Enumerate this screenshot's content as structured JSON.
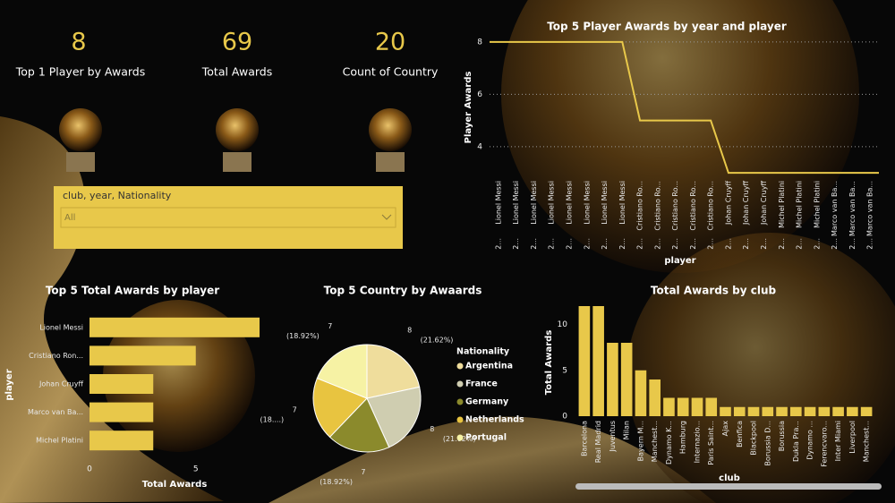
{
  "kpis": [
    {
      "value": 8,
      "label": "Top 1 Player by Awards"
    },
    {
      "value": 69,
      "label": "Total Awards"
    },
    {
      "value": 20,
      "label": "Count of Country"
    }
  ],
  "slicer": {
    "title": "club, year, Nationality",
    "value": "All"
  },
  "chart_data": [
    {
      "type": "line",
      "title": "Top 5 Player Awards by year and player",
      "x_label": "player",
      "y_label": "Player Awards",
      "categories": [
        "Lionel Messi",
        "Lionel Messi",
        "Lionel Messi",
        "Lionel Messi",
        "Lionel Messi",
        "Lionel Messi",
        "Lionel Messi",
        "Lionel Messi",
        "Cristiano Ro...",
        "Cristiano Ro...",
        "Cristiano Ro...",
        "Cristiano Ro...",
        "Cristiano Ro...",
        "Johan Cruyff",
        "Johan Cruyff",
        "Johan Cruyff",
        "Michel Platini",
        "Michel Platini",
        "Michel Platini",
        "Marco van Ba...",
        "Marco van Ba...",
        "Marco van Ba..."
      ],
      "year_labels": [
        "2...",
        "2...",
        "2...",
        "2...",
        "2...",
        "2...",
        "2...",
        "2...",
        "2...",
        "2...",
        "2...",
        "2...",
        "2...",
        "2...",
        "2...",
        "2...",
        "2...",
        "2...",
        "2...",
        "2...",
        "2...",
        "2..."
      ],
      "values": [
        8,
        8,
        8,
        8,
        8,
        8,
        8,
        8,
        5,
        5,
        5,
        5,
        5,
        3,
        3,
        3,
        3,
        3,
        3,
        3,
        3,
        3
      ],
      "color": "#e8c84a",
      "ylim": [
        2.8,
        8.2
      ],
      "yticks": [
        4,
        6,
        8
      ],
      "grid": true
    },
    {
      "type": "hbar",
      "title": "Top 5 Total Awards by player",
      "x_label": "Total Awards",
      "y_label": "player",
      "categories": [
        "Lionel Messi",
        "Cristiano Ron...",
        "Johan Cruyff",
        "Marco van Ba...",
        "Michel Platini"
      ],
      "values": [
        8,
        5,
        3,
        3,
        3
      ],
      "color": "#e8c84a",
      "xlim": [
        0,
        8
      ],
      "xticks": [
        0,
        5
      ]
    },
    {
      "type": "pie",
      "title": "Top 5 Country by Awaards",
      "legend_title": "Nationality",
      "categories": [
        "Argentina",
        "France",
        "Germany",
        "Netherlands",
        "Portugal"
      ],
      "values": [
        8,
        8,
        7,
        7,
        7
      ],
      "percent_labels": [
        "(21.62%)",
        "(21.62%)",
        "(18.92%)",
        "(18....)",
        "(18.92%)"
      ],
      "colors": [
        "#efdd9c",
        "#cfcdb0",
        "#8b8a2c",
        "#e8c440",
        "#f6f2a4"
      ]
    },
    {
      "type": "bar",
      "title": "Total Awards by club",
      "x_label": "club",
      "y_label": "Total Awards",
      "categories": [
        "Barcelona",
        "Real Madrid",
        "Juventus",
        "Milan",
        "Bayern M...",
        "Manchest...",
        "Dynamo K...",
        "Hamburg",
        "Internazio...",
        "Paris Saint...",
        "Ajax",
        "Benfica",
        "Blackpool",
        "Borussia D...",
        "Borussia",
        "Dukla Pra...",
        "Dynamo ...",
        "Ferencvaro...",
        "Inter Miami",
        "Liverpool",
        "Manchest..."
      ],
      "values": [
        12,
        12,
        8,
        8,
        5,
        4,
        2,
        2,
        2,
        2,
        1,
        1,
        1,
        1,
        1,
        1,
        1,
        1,
        1,
        1,
        1
      ],
      "color": "#e8c84a",
      "ylim": [
        0,
        12
      ],
      "yticks": [
        0,
        5,
        10
      ]
    }
  ]
}
